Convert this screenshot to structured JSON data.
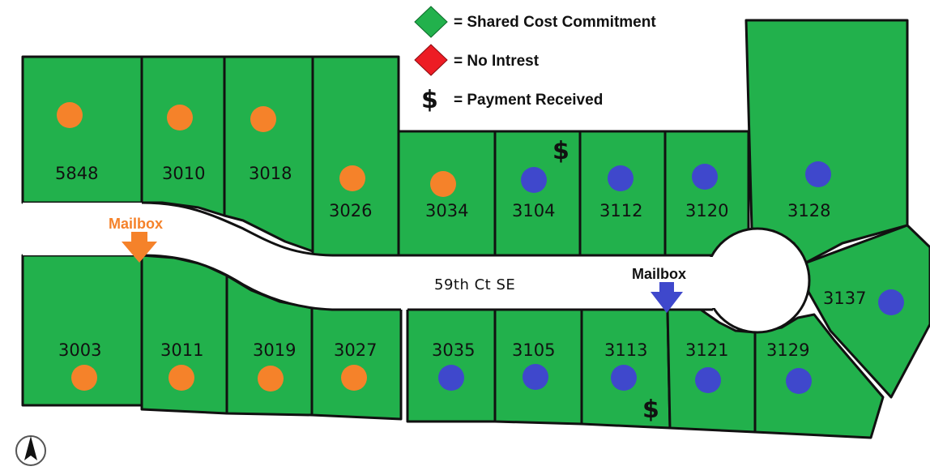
{
  "legend": {
    "items": [
      {
        "symbol": "green-diamond",
        "color": "#22b14c",
        "label": "= Shared Cost Commitment"
      },
      {
        "symbol": "red-diamond",
        "color": "#ed1c24",
        "label": "= No Intrest"
      },
      {
        "symbol": "dollar-sign",
        "glyph": "$",
        "label": "= Payment Received"
      }
    ]
  },
  "street": {
    "name": "59th Ct SE"
  },
  "mailboxes": [
    {
      "label": "Mailbox",
      "color": "#f5822a"
    },
    {
      "label": "Mailbox",
      "color": "#3f48cc"
    }
  ],
  "lots_north": [
    "5848",
    "3010",
    "3018",
    "3026",
    "3034",
    "3104",
    "3112",
    "3120",
    "3128"
  ],
  "lots_south": [
    "3003",
    "3011",
    "3019",
    "3027",
    "3035",
    "3105",
    "3113",
    "3121",
    "3129",
    "3137"
  ],
  "dot_groups": {
    "orange": {
      "color": "#f5822a",
      "lots": [
        "5848",
        "3010",
        "3018",
        "3026",
        "3034",
        "3003",
        "3011",
        "3019",
        "3027"
      ]
    },
    "blue": {
      "color": "#3f48cc",
      "lots": [
        "3104",
        "3112",
        "3120",
        "3128",
        "3137",
        "3035",
        "3105",
        "3113",
        "3121",
        "3129"
      ]
    }
  },
  "payments": {
    "glyph": "$",
    "lots": [
      "3104",
      "3113"
    ]
  },
  "north_arrow": {
    "icon": "north-arrow-icon"
  }
}
